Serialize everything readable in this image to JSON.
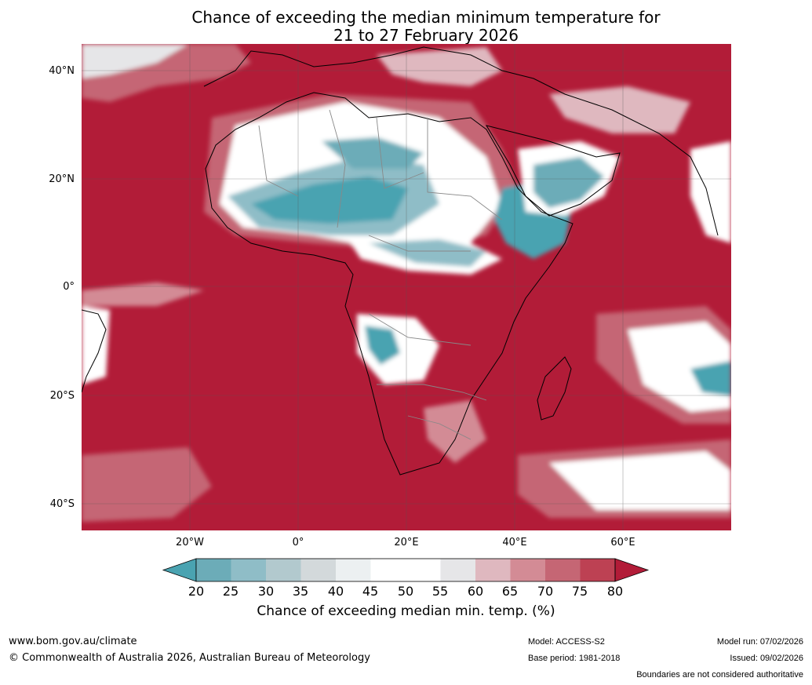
{
  "title": {
    "line1": "Chance of exceeding the median minimum temperature for",
    "line2": "21 to 27 February 2026"
  },
  "axes": {
    "lat_labels": [
      "40°N",
      "20°N",
      "0°",
      "20°S",
      "40°S"
    ],
    "lon_labels": [
      "20°W",
      "0°",
      "20°E",
      "40°E",
      "60°E"
    ]
  },
  "colorbar": {
    "ticks": [
      "20",
      "25",
      "30",
      "35",
      "40",
      "45",
      "50",
      "55",
      "60",
      "65",
      "70",
      "75",
      "80"
    ],
    "colors": [
      "#4aa3b1",
      "#6cacb8",
      "#8fbdc7",
      "#b2c9ce",
      "#d3d9db",
      "#ecf0f1",
      "#ffffff",
      "#ffffff",
      "#e6e6e8",
      "#dfb8bf",
      "#d38b95",
      "#c56674",
      "#bd4153",
      "#b21c38"
    ],
    "label": "Chance of exceeding median min. temp. (%)"
  },
  "map_colors": {
    "high": "#b21c38",
    "mid_high": "#c56674",
    "mid": "#e6e6e8",
    "neutral": "#ffffff",
    "low": "#8fbdc7",
    "very_low": "#4aa3b1"
  },
  "footer": {
    "website": "www.bom.gov.au/climate",
    "copyright": "© Commonwealth of Australia 2026, Australian Bureau of Meteorology",
    "model": "Model: ACCESS-S2",
    "base_period": "Base period: 1981-2018",
    "model_run": "Model run: 07/02/2026",
    "issued": "Issued: 09/02/2026",
    "disclaimer": "Boundaries are not considered authoritative"
  }
}
